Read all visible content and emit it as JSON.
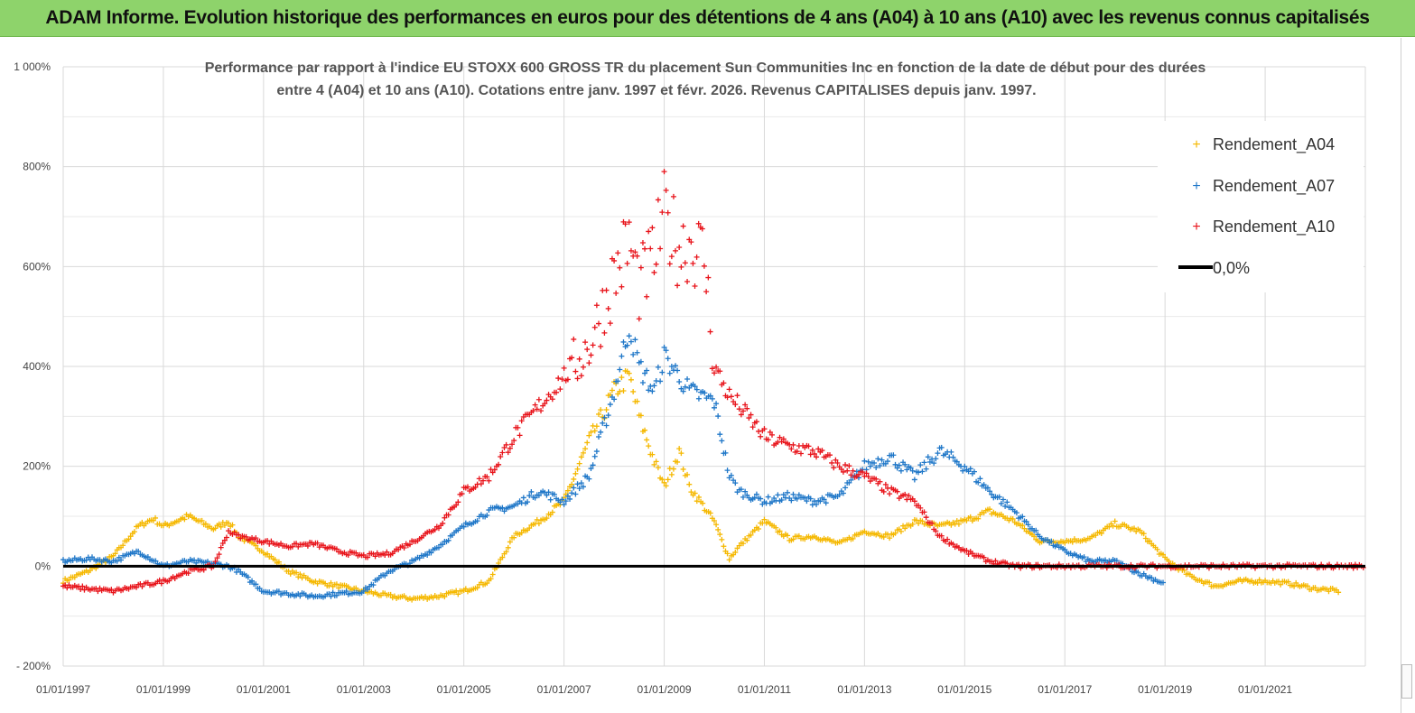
{
  "banner": {
    "title": "ADAM Informe. Evolution historique des performances en euros pour des détentions de 4 ans (A04) à 10 ans (A10) avec les revenus connus capitalisés"
  },
  "chart_data": {
    "type": "scatter",
    "title_lines": [
      "Performance par rapport à l'indice EU STOXX 600 GROSS TR  du placement Sun Communities Inc en fonction de la date de début pour des durées",
      "entre 4 (A04) et 10 ans (A10). Cotations entre janv. 1997 et févr. 2026. Revenus CAPITALISES depuis janv. 1997."
    ],
    "xlabel": "",
    "ylabel": "",
    "x_range": [
      1997.0,
      2023.0
    ],
    "ylim": [
      -200,
      1000
    ],
    "y_ticks": [
      "1 000%",
      "800%",
      "600%",
      "400%",
      "200%",
      "0%",
      "- 200%"
    ],
    "y_tick_values": [
      1000,
      800,
      600,
      400,
      200,
      0,
      -200
    ],
    "x_ticks": [
      "01/01/1997",
      "01/01/1999",
      "01/01/2001",
      "01/01/2003",
      "01/01/2005",
      "01/01/2007",
      "01/01/2009",
      "01/01/2011",
      "01/01/2013",
      "01/01/2015",
      "01/01/2017",
      "01/01/2019",
      "01/01/2021"
    ],
    "x_tick_values": [
      1997,
      1999,
      2001,
      2003,
      2005,
      2007,
      2009,
      2011,
      2013,
      2015,
      2017,
      2019,
      2021
    ],
    "grid": true,
    "legend_position": "top-right",
    "legend": [
      "Rendement_A04",
      "Rendement_A07",
      "Rendement_A10",
      "0,0%"
    ],
    "series": [
      {
        "name": "Rendement_A04",
        "color": "#f5b800",
        "marker": "plus",
        "x": [
          1997.0,
          1997.5,
          1998.0,
          1998.5,
          1998.8,
          1999.0,
          1999.5,
          2000.0,
          2000.3,
          2000.5,
          2001.0,
          2001.5,
          2002.0,
          2002.5,
          2003.0,
          2003.5,
          2004.0,
          2004.5,
          2005.0,
          2005.5,
          2006.0,
          2006.5,
          2007.0,
          2007.5,
          2008.0,
          2008.3,
          2008.5,
          2008.8,
          2009.0,
          2009.3,
          2009.5,
          2010.0,
          2010.3,
          2010.5,
          2011.0,
          2011.5,
          2012.0,
          2012.5,
          2013.0,
          2013.5,
          2014.0,
          2014.5,
          2015.0,
          2015.5,
          2016.0,
          2016.5,
          2017.0,
          2017.5,
          2018.0,
          2018.5,
          2019.0,
          2019.5,
          2020.0,
          2020.5,
          2021.0,
          2021.5,
          2022.0,
          2022.5
        ],
        "y": [
          -30,
          -10,
          20,
          80,
          95,
          80,
          100,
          75,
          90,
          60,
          30,
          -10,
          -30,
          -40,
          -50,
          -60,
          -65,
          -60,
          -50,
          -30,
          60,
          90,
          130,
          250,
          350,
          380,
          300,
          210,
          160,
          230,
          160,
          90,
          15,
          40,
          90,
          55,
          60,
          45,
          70,
          60,
          90,
          80,
          90,
          110,
          90,
          50,
          50,
          55,
          85,
          70,
          15,
          -20,
          -40,
          -30,
          -30,
          -35,
          -45,
          -50
        ]
      },
      {
        "name": "Rendement_A07",
        "color": "#1f77c8",
        "marker": "plus",
        "x": [
          1997.0,
          1997.5,
          1998.0,
          1998.5,
          1999.0,
          1999.5,
          2000.0,
          2000.3,
          2000.5,
          2001.0,
          2001.5,
          2002.0,
          2002.5,
          2003.0,
          2003.5,
          2004.0,
          2004.5,
          2005.0,
          2005.5,
          2006.0,
          2006.5,
          2007.0,
          2007.5,
          2008.0,
          2008.3,
          2008.5,
          2008.8,
          2009.0,
          2009.3,
          2009.5,
          2010.0,
          2010.3,
          2010.5,
          2011.0,
          2011.5,
          2012.0,
          2012.5,
          2013.0,
          2013.5,
          2014.0,
          2014.5,
          2015.0,
          2015.5,
          2016.0,
          2016.5,
          2017.0,
          2017.5,
          2018.0,
          2018.5,
          2019.0
        ],
        "y": [
          10,
          15,
          10,
          30,
          0,
          10,
          5,
          0,
          -10,
          -50,
          -55,
          -60,
          -55,
          -50,
          -10,
          10,
          40,
          80,
          110,
          120,
          150,
          130,
          180,
          350,
          480,
          400,
          350,
          420,
          380,
          350,
          330,
          180,
          150,
          130,
          140,
          130,
          140,
          200,
          220,
          180,
          230,
          200,
          150,
          110,
          60,
          30,
          10,
          10,
          -15,
          -35
        ]
      },
      {
        "name": "Rendement_A10",
        "color": "#e8141b",
        "marker": "plus",
        "x": [
          1997.0,
          1997.5,
          1998.0,
          1998.5,
          1999.0,
          1999.5,
          2000.0,
          2000.3,
          2000.5,
          2001.0,
          2001.5,
          2002.0,
          2002.5,
          2003.0,
          2003.5,
          2004.0,
          2004.5,
          2005.0,
          2005.5,
          2006.0,
          2006.5,
          2007.0,
          2007.5,
          2008.0,
          2008.3,
          2008.5,
          2008.8,
          2009.0,
          2009.3,
          2009.5,
          2009.8,
          2010.0,
          2010.3,
          2010.5,
          2011.0,
          2011.5,
          2012.0,
          2012.5,
          2013.0,
          2013.5,
          2014.0,
          2014.5,
          2015.0,
          2015.5,
          2016.0,
          2016.5,
          2017.0,
          2018.0,
          2019.0,
          2020.0,
          2021.0,
          2022.0,
          2023.0
        ],
        "y": [
          -40,
          -45,
          -50,
          -40,
          -30,
          -10,
          0,
          70,
          60,
          50,
          40,
          45,
          30,
          20,
          25,
          50,
          80,
          150,
          180,
          260,
          320,
          380,
          440,
          580,
          650,
          560,
          620,
          700,
          640,
          650,
          620,
          400,
          340,
          320,
          260,
          240,
          230,
          200,
          180,
          150,
          130,
          60,
          30,
          10,
          0,
          0,
          0,
          0,
          0,
          0,
          0,
          0,
          0
        ]
      }
    ]
  }
}
